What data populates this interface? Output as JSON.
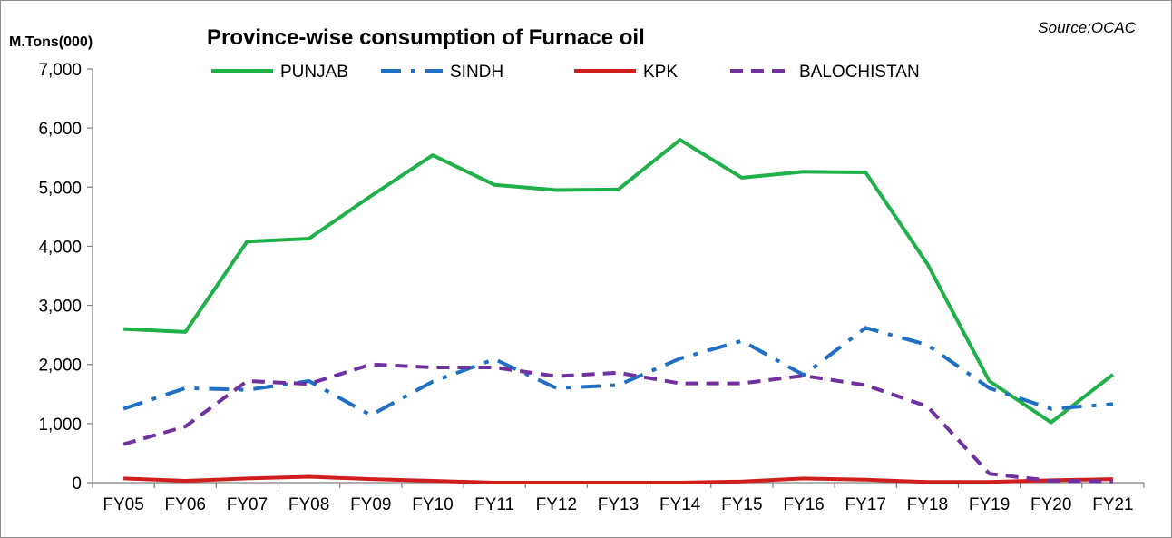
{
  "chart_data": {
    "type": "line",
    "title": "Province-wise consumption of Furnace oil",
    "ylabel": "M.Tons(000)",
    "source": "Source:OCAC",
    "xlabel": "",
    "ylim": [
      0,
      7000
    ],
    "yticks": [
      "0",
      "1,000",
      "2,000",
      "3,000",
      "4,000",
      "5,000",
      "6,000",
      "7,000"
    ],
    "ytick_values": [
      0,
      1000,
      2000,
      3000,
      4000,
      5000,
      6000,
      7000
    ],
    "categories": [
      "FY05",
      "FY06",
      "FY07",
      "FY08",
      "FY09",
      "FY10",
      "FY11",
      "FY12",
      "FY13",
      "FY14",
      "FY15",
      "FY16",
      "FY17",
      "FY18",
      "FY19",
      "FY20",
      "FY21"
    ],
    "grid": false,
    "legend_position": "top",
    "series": [
      {
        "name": "PUNJAB",
        "color": "#1fb04a",
        "style": "solid",
        "values": [
          2600,
          2550,
          4080,
          4130,
          4850,
          5540,
          5040,
          4950,
          4960,
          5800,
          5160,
          5260,
          5250,
          3700,
          1720,
          1020,
          1830
        ]
      },
      {
        "name": "SINDH",
        "color": "#1f6fc5",
        "style": "dashdot",
        "values": [
          1250,
          1600,
          1570,
          1720,
          1140,
          1710,
          2090,
          1600,
          1650,
          2100,
          2400,
          1820,
          2620,
          2330,
          1600,
          1250,
          1330
        ]
      },
      {
        "name": "KPK",
        "color": "#d01e1e",
        "style": "solid",
        "values": [
          70,
          30,
          70,
          100,
          60,
          30,
          0,
          0,
          0,
          0,
          20,
          70,
          50,
          10,
          10,
          40,
          60
        ]
      },
      {
        "name": "BALOCHISTAN",
        "color": "#7030a0",
        "style": "dashed",
        "values": [
          650,
          950,
          1720,
          1670,
          2000,
          1950,
          1950,
          1800,
          1860,
          1680,
          1680,
          1810,
          1650,
          1290,
          150,
          30,
          20
        ]
      }
    ]
  }
}
